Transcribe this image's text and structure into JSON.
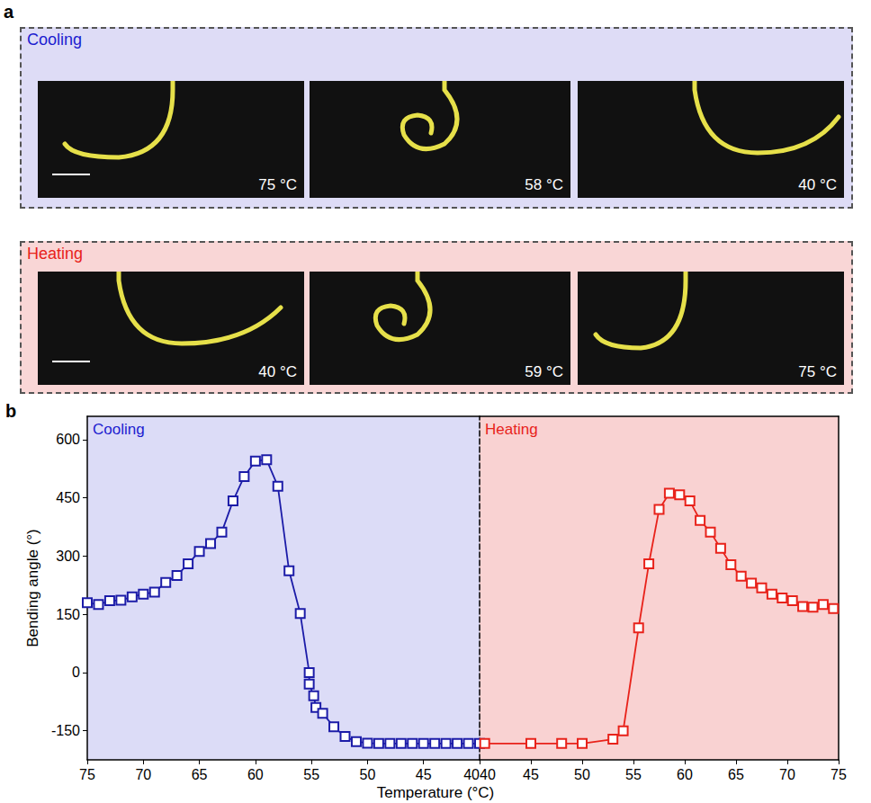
{
  "panel_a": {
    "label": "a",
    "rows": [
      {
        "title": "Cooling",
        "color": "#1c1cd0",
        "frames": [
          "75 °C",
          "58 °C",
          "40 °C"
        ]
      },
      {
        "title": "Heating",
        "color": "#e8221a",
        "frames": [
          "40 °C",
          "59 °C",
          "75 °C"
        ]
      }
    ]
  },
  "panel_b_label": "b",
  "chart_data": [
    {
      "type": "line",
      "title": "Cooling",
      "xlabel": "Temperature (°C)",
      "ylabel": "Bending angle (°)",
      "x": [
        75,
        74,
        73,
        72,
        71,
        70,
        69,
        68,
        67,
        66,
        65,
        64,
        63,
        62,
        61,
        60,
        59,
        58,
        57,
        56,
        55.2,
        55.2,
        54.8,
        54.6,
        54,
        53,
        52,
        51,
        50,
        49,
        48,
        47,
        46,
        45,
        44,
        43,
        42,
        41,
        40
      ],
      "values": [
        180,
        175,
        185,
        186,
        195,
        202,
        207,
        232,
        250,
        280,
        312,
        332,
        362,
        442,
        505,
        545,
        548,
        480,
        262,
        152,
        0,
        -30,
        -60,
        -90,
        -105,
        -140,
        -165,
        -178,
        -182,
        -183,
        -183,
        -183,
        -183,
        -183,
        -183,
        -183,
        -183,
        -183,
        -183
      ],
      "color": "#1c1ca8",
      "marker": "square",
      "xlim": [
        75,
        40
      ],
      "xticks": [
        75,
        70,
        65,
        60,
        55,
        50,
        45,
        40
      ],
      "ylim": [
        -225,
        660
      ],
      "yticks": [
        -150,
        0,
        150,
        300,
        450,
        600
      ]
    },
    {
      "type": "line",
      "title": "Heating",
      "x": [
        40.5,
        45,
        48,
        50,
        53,
        54,
        55.5,
        56.5,
        57.5,
        58.5,
        59.5,
        60.5,
        61.5,
        62.5,
        63.5,
        64.5,
        65.5,
        66.5,
        67.5,
        68.5,
        69.5,
        70.5,
        71.5,
        72.5,
        73.5,
        74.5
      ],
      "values": [
        -183,
        -183,
        -183,
        -183,
        -172,
        -150,
        115,
        280,
        420,
        462,
        458,
        442,
        392,
        362,
        320,
        278,
        248,
        230,
        218,
        202,
        192,
        185,
        170,
        168,
        175,
        165
      ],
      "color": "#e8221a",
      "marker": "square",
      "tick_labels": "x",
      "xlim": [
        40,
        75
      ],
      "xticks": [
        40,
        45,
        50,
        55,
        60,
        65,
        70,
        75
      ],
      "ylim": [
        -225,
        660
      ],
      "yticks": [
        -150,
        0,
        150,
        300,
        450,
        600
      ]
    }
  ]
}
